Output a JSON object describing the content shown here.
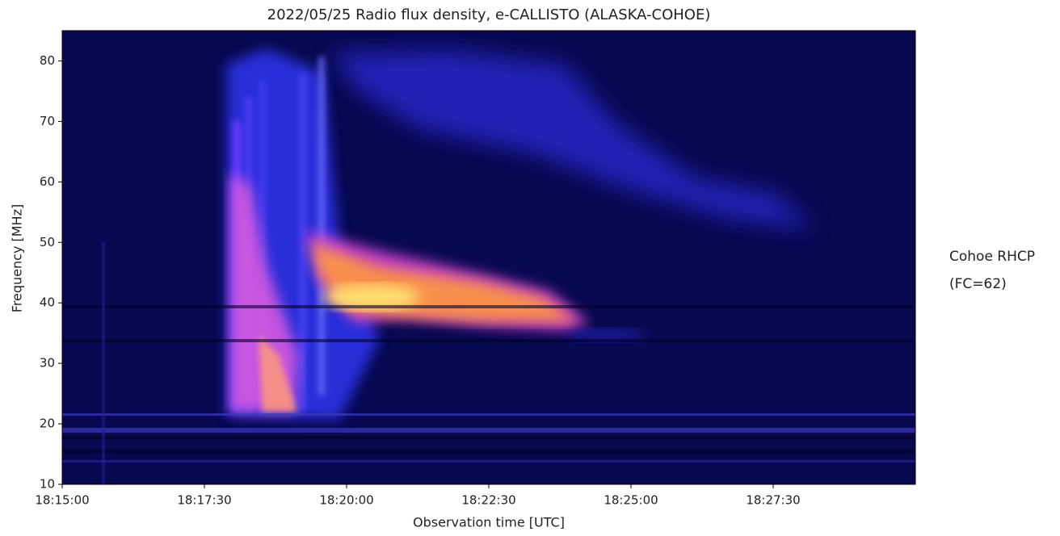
{
  "chart_data": {
    "type": "spectrogram",
    "title": "2022/05/25  Radio flux density, e-CALLISTO (ALASKA-COHOE)",
    "xlabel": "Observation time [UTC]",
    "ylabel": "Frequency [MHz]",
    "xlim": [
      "18:15:00",
      "18:30:00"
    ],
    "xticks": [
      "18:15:00",
      "18:17:30",
      "18:20:00",
      "18:22:30",
      "18:25:00",
      "18:27:30"
    ],
    "ylim": [
      10,
      85
    ],
    "yticks": [
      10,
      20,
      30,
      40,
      50,
      60,
      70,
      80
    ],
    "annotation": [
      "Cohoe RHCP",
      "(FC=62)"
    ]
  }
}
